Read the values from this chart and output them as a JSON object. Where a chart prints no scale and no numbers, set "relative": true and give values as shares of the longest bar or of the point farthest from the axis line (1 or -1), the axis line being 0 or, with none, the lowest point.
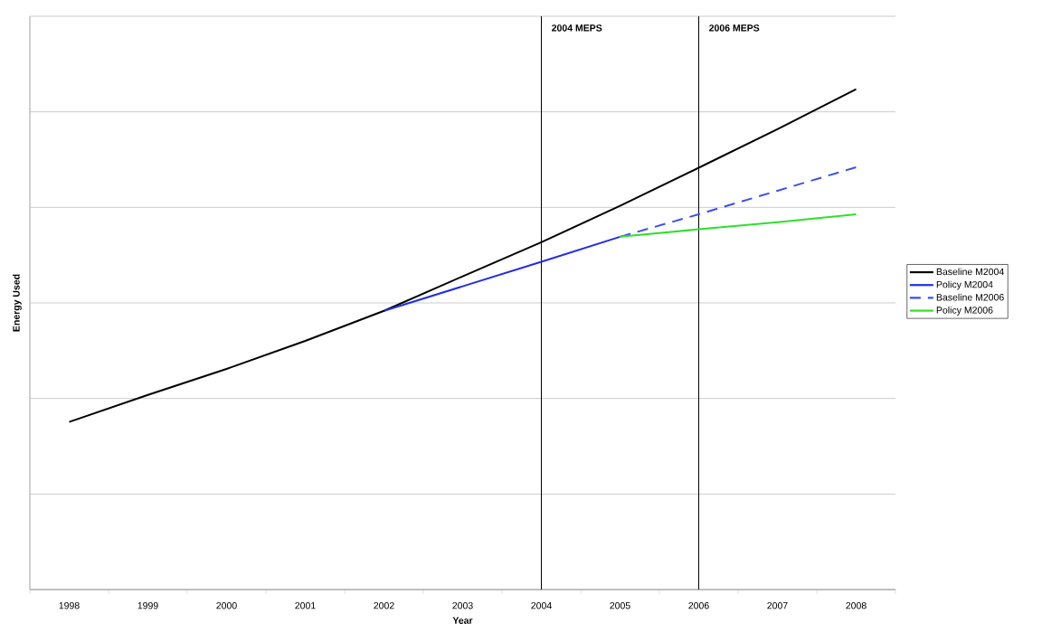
{
  "chart_data": {
    "type": "line",
    "relative": true,
    "xlabel": "Year",
    "ylabel": "Energy Used",
    "categories": [
      "1998",
      "1999",
      "2000",
      "2001",
      "2002",
      "2003",
      "2004",
      "2005",
      "2006",
      "2007",
      "2008"
    ],
    "series": [
      {
        "name": "Baseline M2004",
        "color": "#000000",
        "line_style": "solid",
        "values": [
          0.335,
          0.389,
          0.441,
          0.497,
          0.557,
          0.626,
          0.694,
          0.767,
          0.843,
          0.92,
          1
        ]
      },
      {
        "name": "Policy M2004",
        "color": "#1f2de8",
        "line_style": "solid",
        "values": [
          null,
          null,
          null,
          null,
          0.557,
          0.606,
          0.655,
          0.705,
          null,
          null,
          null
        ]
      },
      {
        "name": "Baseline M2006",
        "color": "#3a4ef0",
        "line_style": "dashed",
        "values": [
          null,
          null,
          null,
          null,
          null,
          null,
          null,
          0.705,
          0.75,
          0.797,
          0.844
        ]
      },
      {
        "name": "Policy M2006",
        "color": "#2ee02a",
        "line_style": "solid",
        "values": [
          null,
          null,
          null,
          null,
          null,
          null,
          null,
          0.705,
          0.72,
          0.734,
          0.75
        ]
      }
    ],
    "ref_lines": [
      {
        "axis": "x",
        "value": "2004",
        "label": "2004 MEPS",
        "color": "#000000"
      },
      {
        "axis": "x",
        "value": "2006",
        "label": "2006 MEPS",
        "color": "#000000"
      }
    ],
    "grid": "y",
    "legend": "right",
    "marker": "none"
  }
}
